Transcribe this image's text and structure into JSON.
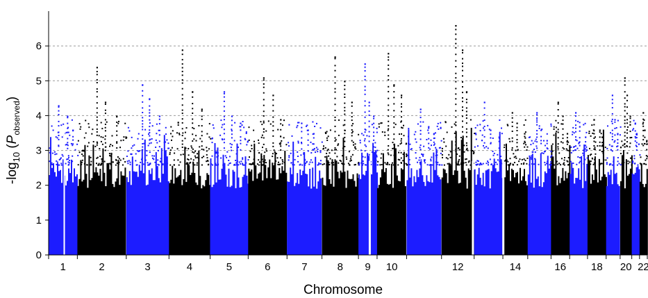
{
  "chart_data": {
    "type": "scatter",
    "subtype": "manhattan",
    "title": "",
    "xlabel": "Chromosome",
    "ylabel": {
      "prefix": "-log",
      "subscript": "10",
      "open": " (",
      "italic": "P",
      "sub_italic_suffix": "observed",
      "close": ")"
    },
    "ylim": [
      0,
      7
    ],
    "yticks": [
      0,
      1,
      2,
      3,
      4,
      5,
      6
    ],
    "xtick_labels": [
      "1",
      "2",
      "3",
      "4",
      "5",
      "6",
      "7",
      "8",
      "9",
      "10",
      "12",
      "14",
      "16",
      "18",
      "20",
      "22"
    ],
    "grid": {
      "y_major": true,
      "style": "dotted",
      "lines_at": [
        3,
        4,
        5,
        6
      ]
    },
    "colors": {
      "odd": "#1c1cff",
      "even": "#000000",
      "grid": "#9a9a9a",
      "axis": "#000000"
    },
    "chromosomes": [
      {
        "chr": "1",
        "label": "1",
        "color": "blue",
        "peaks": [
          4.3,
          4.0,
          3.6
        ]
      },
      {
        "chr": "2",
        "label": "2",
        "color": "black",
        "peaks": [
          5.4,
          4.4,
          4.0
        ]
      },
      {
        "chr": "3",
        "label": "3",
        "color": "blue",
        "peaks": [
          4.9,
          4.5,
          4.0
        ]
      },
      {
        "chr": "4",
        "label": "4",
        "color": "black",
        "peaks": [
          5.9,
          4.7,
          4.2
        ]
      },
      {
        "chr": "5",
        "label": "5",
        "color": "blue",
        "peaks": [
          4.7,
          4.0,
          3.8
        ]
      },
      {
        "chr": "6",
        "label": "6",
        "color": "black",
        "peaks": [
          5.1,
          4.6,
          3.9
        ]
      },
      {
        "chr": "7",
        "label": "7",
        "color": "blue",
        "peaks": [
          3.8,
          3.6,
          3.5
        ]
      },
      {
        "chr": "8",
        "label": "8",
        "color": "black",
        "peaks": [
          5.7,
          5.0,
          4.4
        ]
      },
      {
        "chr": "9",
        "label": "9",
        "color": "blue",
        "peaks": [
          5.5,
          4.4,
          4.0
        ]
      },
      {
        "chr": "10",
        "label": "10",
        "color": "black",
        "peaks": [
          5.8,
          4.9,
          4.6
        ]
      },
      {
        "chr": "11",
        "label": "",
        "color": "blue",
        "peaks": [
          4.2,
          3.7,
          3.5
        ]
      },
      {
        "chr": "12",
        "label": "12",
        "color": "black",
        "peaks": [
          6.6,
          5.9,
          4.7
        ]
      },
      {
        "chr": "13",
        "label": "",
        "color": "blue",
        "peaks": [
          4.4,
          3.6,
          3.4
        ]
      },
      {
        "chr": "14",
        "label": "14",
        "color": "black",
        "peaks": [
          4.1,
          3.8,
          3.5
        ]
      },
      {
        "chr": "15",
        "label": "",
        "color": "blue",
        "peaks": [
          4.1,
          3.6,
          3.3
        ]
      },
      {
        "chr": "16",
        "label": "16",
        "color": "black",
        "peaks": [
          4.4,
          4.0,
          3.5
        ]
      },
      {
        "chr": "17",
        "label": "",
        "color": "blue",
        "peaks": [
          4.1,
          3.7,
          3.4
        ]
      },
      {
        "chr": "18",
        "label": "18",
        "color": "black",
        "peaks": [
          3.9,
          3.6,
          3.4
        ]
      },
      {
        "chr": "19",
        "label": "",
        "color": "blue",
        "peaks": [
          4.6,
          3.9,
          3.5
        ]
      },
      {
        "chr": "20",
        "label": "20",
        "color": "black",
        "peaks": [
          5.1,
          4.6,
          4.0
        ]
      },
      {
        "chr": "21",
        "label": "",
        "color": "blue",
        "peaks": [
          3.8,
          3.5,
          3.2
        ]
      },
      {
        "chr": "22",
        "label": "22",
        "color": "black",
        "peaks": [
          4.1,
          3.6,
          3.3
        ]
      }
    ]
  }
}
